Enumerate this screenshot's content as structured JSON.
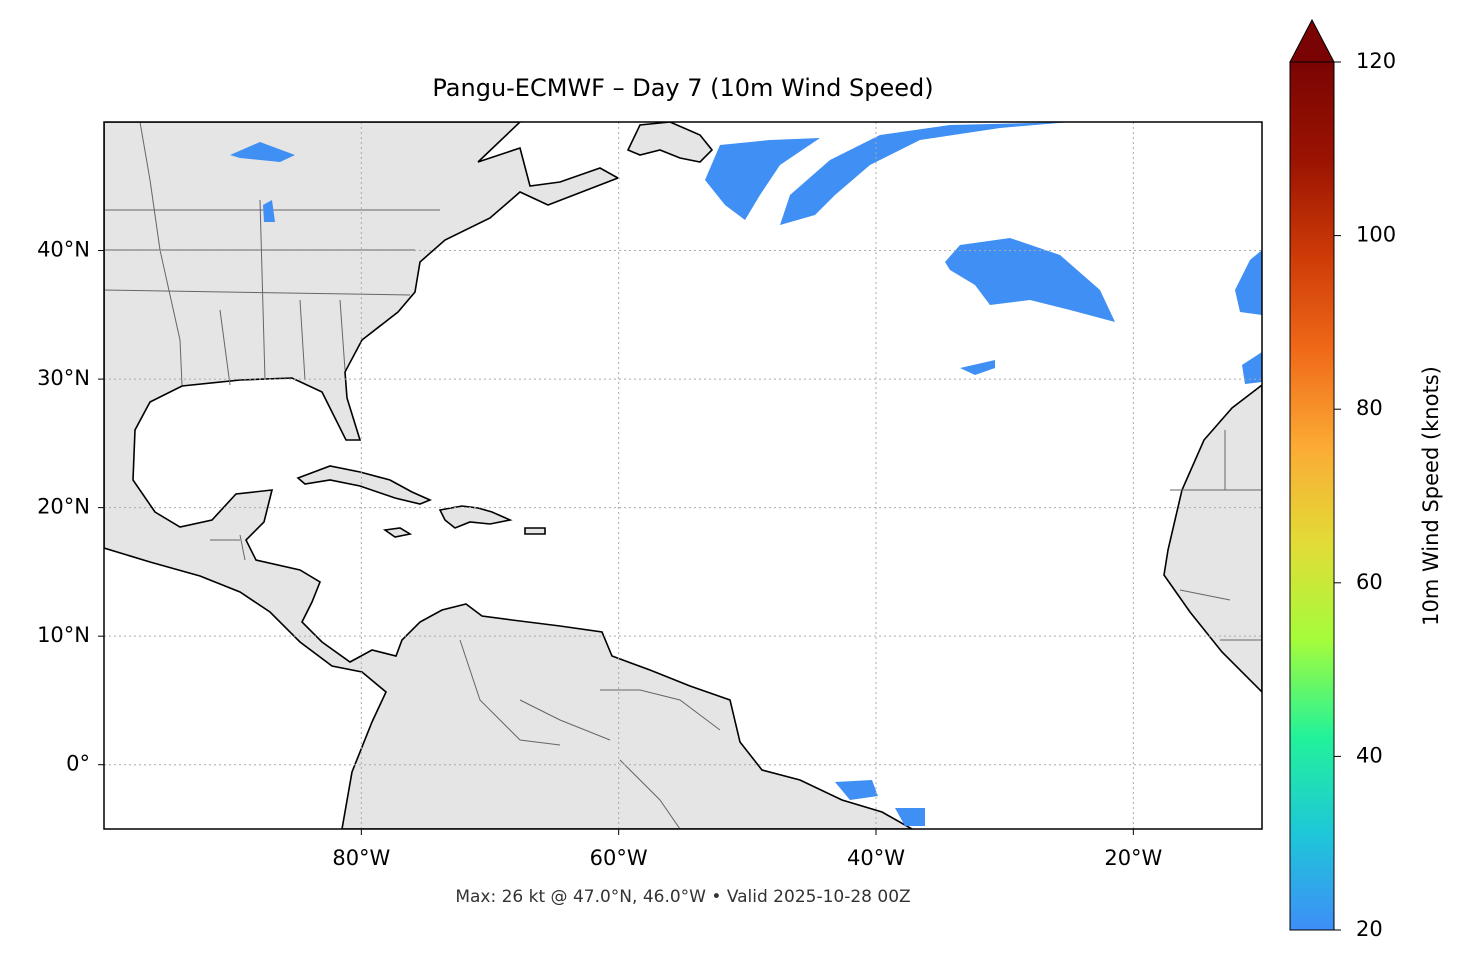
{
  "chart_data": {
    "type": "map",
    "title": "Pangu-ECMWF – Day 7 (10m Wind Speed)",
    "footnote": "Max: 26 kt @ 47.0°N, 46.0°W • Valid 2025-10-28 00Z",
    "xlim": [
      -100,
      -10
    ],
    "ylim": [
      -5,
      50
    ],
    "xticks": [
      {
        "value": -80,
        "label": "80°W"
      },
      {
        "value": -60,
        "label": "60°W"
      },
      {
        "value": -40,
        "label": "40°W"
      },
      {
        "value": -20,
        "label": "20°W"
      }
    ],
    "yticks": [
      {
        "value": 0,
        "label": "0°"
      },
      {
        "value": 10,
        "label": "10°N"
      },
      {
        "value": 20,
        "label": "20°N"
      },
      {
        "value": 30,
        "label": "30°N"
      },
      {
        "value": 40,
        "label": "40°N"
      }
    ],
    "grid": true,
    "colorbar": {
      "label": "10m Wind Speed (knots)",
      "lim": [
        20,
        120
      ],
      "ticks": [
        20,
        40,
        60,
        80,
        100,
        120
      ],
      "extend": "max",
      "colors": [
        "#3e8ef7",
        "#1ec7d8",
        "#22f29a",
        "#a4fc3b",
        "#e2dc37",
        "#fbab35",
        "#f06a19",
        "#cd3a07",
        "#9a1302",
        "#7a0403"
      ]
    }
  }
}
